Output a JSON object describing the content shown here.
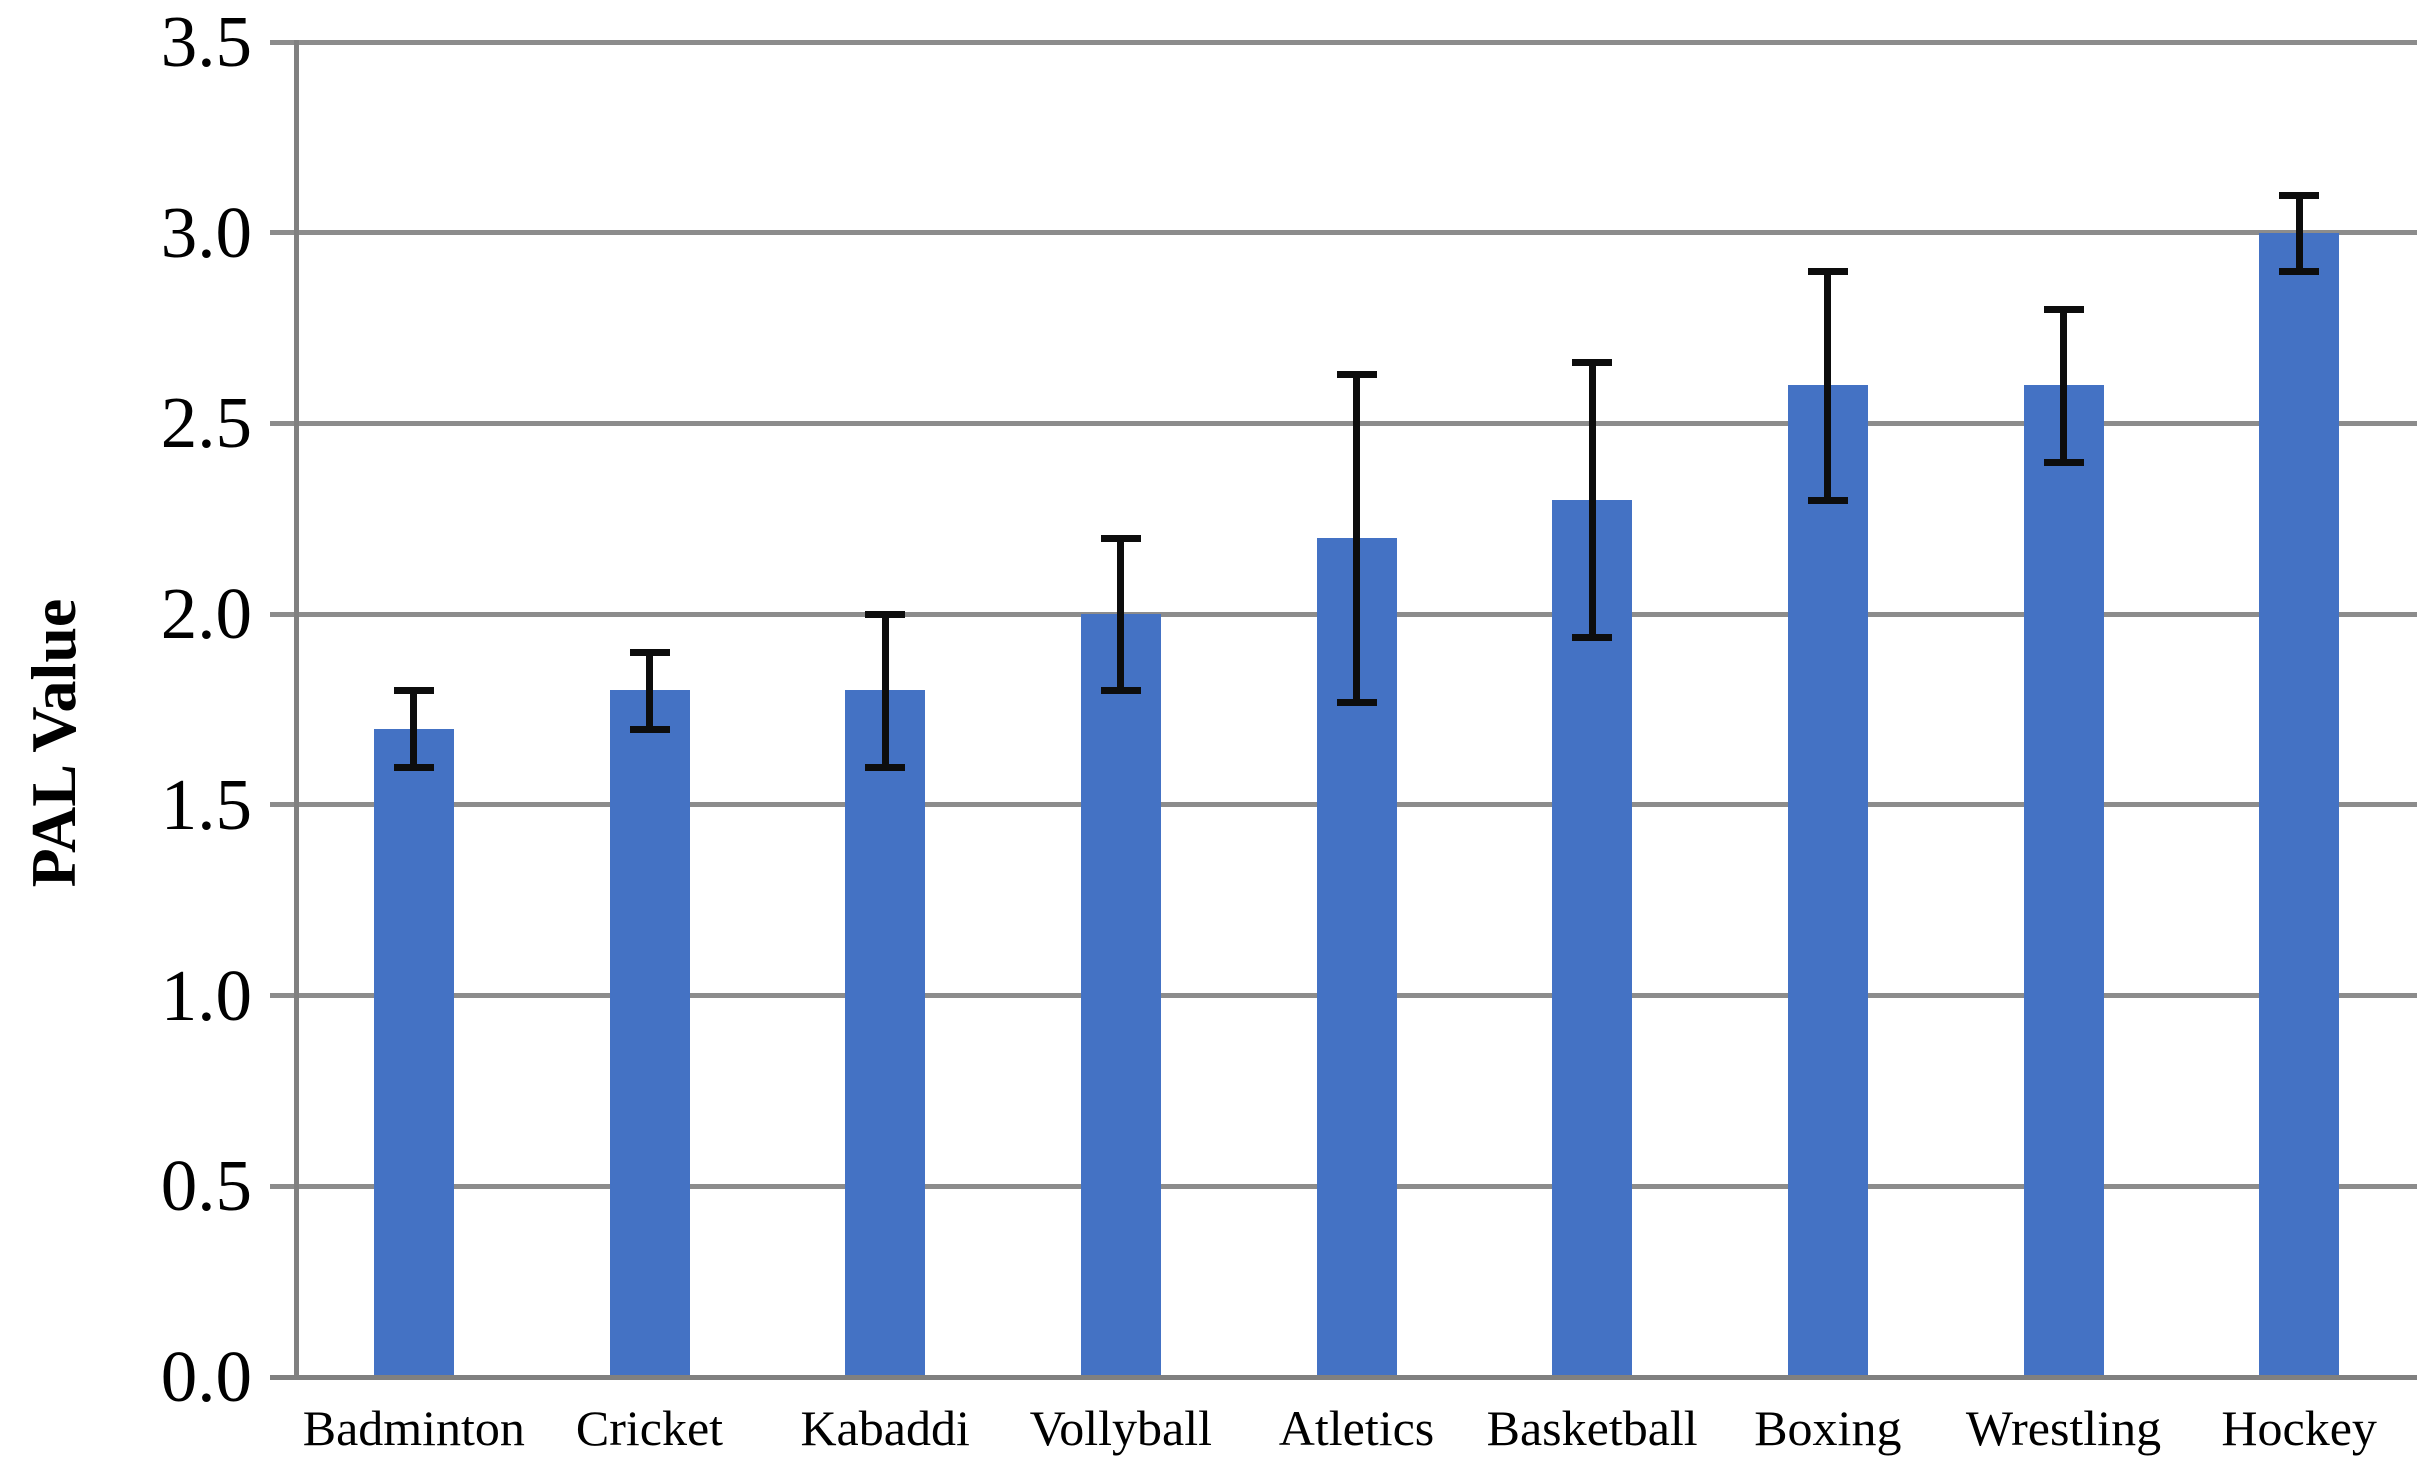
{
  "chart_data": {
    "type": "bar",
    "title": "",
    "xlabel": "",
    "ylabel": "PAL Value",
    "ylim": [
      0.0,
      3.5
    ],
    "ytick_step": 0.5,
    "ytick_labels": [
      "0.0",
      "0.5",
      "1.0",
      "1.5",
      "2.0",
      "2.5",
      "3.0",
      "3.5"
    ],
    "ytick_values": [
      0.0,
      0.5,
      1.0,
      1.5,
      2.0,
      2.5,
      3.0,
      3.5
    ],
    "grid": true,
    "legend": false,
    "categories": [
      "Badminton",
      "Cricket",
      "Kabaddi",
      "Vollyball",
      "Atletics",
      "Basketball",
      "Boxing",
      "Wrestling",
      "Hockey"
    ],
    "series": [
      {
        "name": "PAL Value",
        "values": [
          1.7,
          1.8,
          1.8,
          2.0,
          2.2,
          2.3,
          2.6,
          2.6,
          3.0
        ],
        "error_high": [
          1.8,
          1.9,
          2.0,
          2.2,
          2.63,
          2.66,
          2.9,
          2.8,
          3.1
        ],
        "error_low": [
          1.6,
          1.7,
          1.6,
          1.8,
          1.77,
          1.94,
          2.3,
          2.4,
          2.9
        ]
      }
    ],
    "colors": {
      "bar": "#4472C4",
      "gridline": "#8C8C8C",
      "axis": "#808080",
      "error_bar": "#0d0d0d",
      "text": "#000000"
    }
  }
}
